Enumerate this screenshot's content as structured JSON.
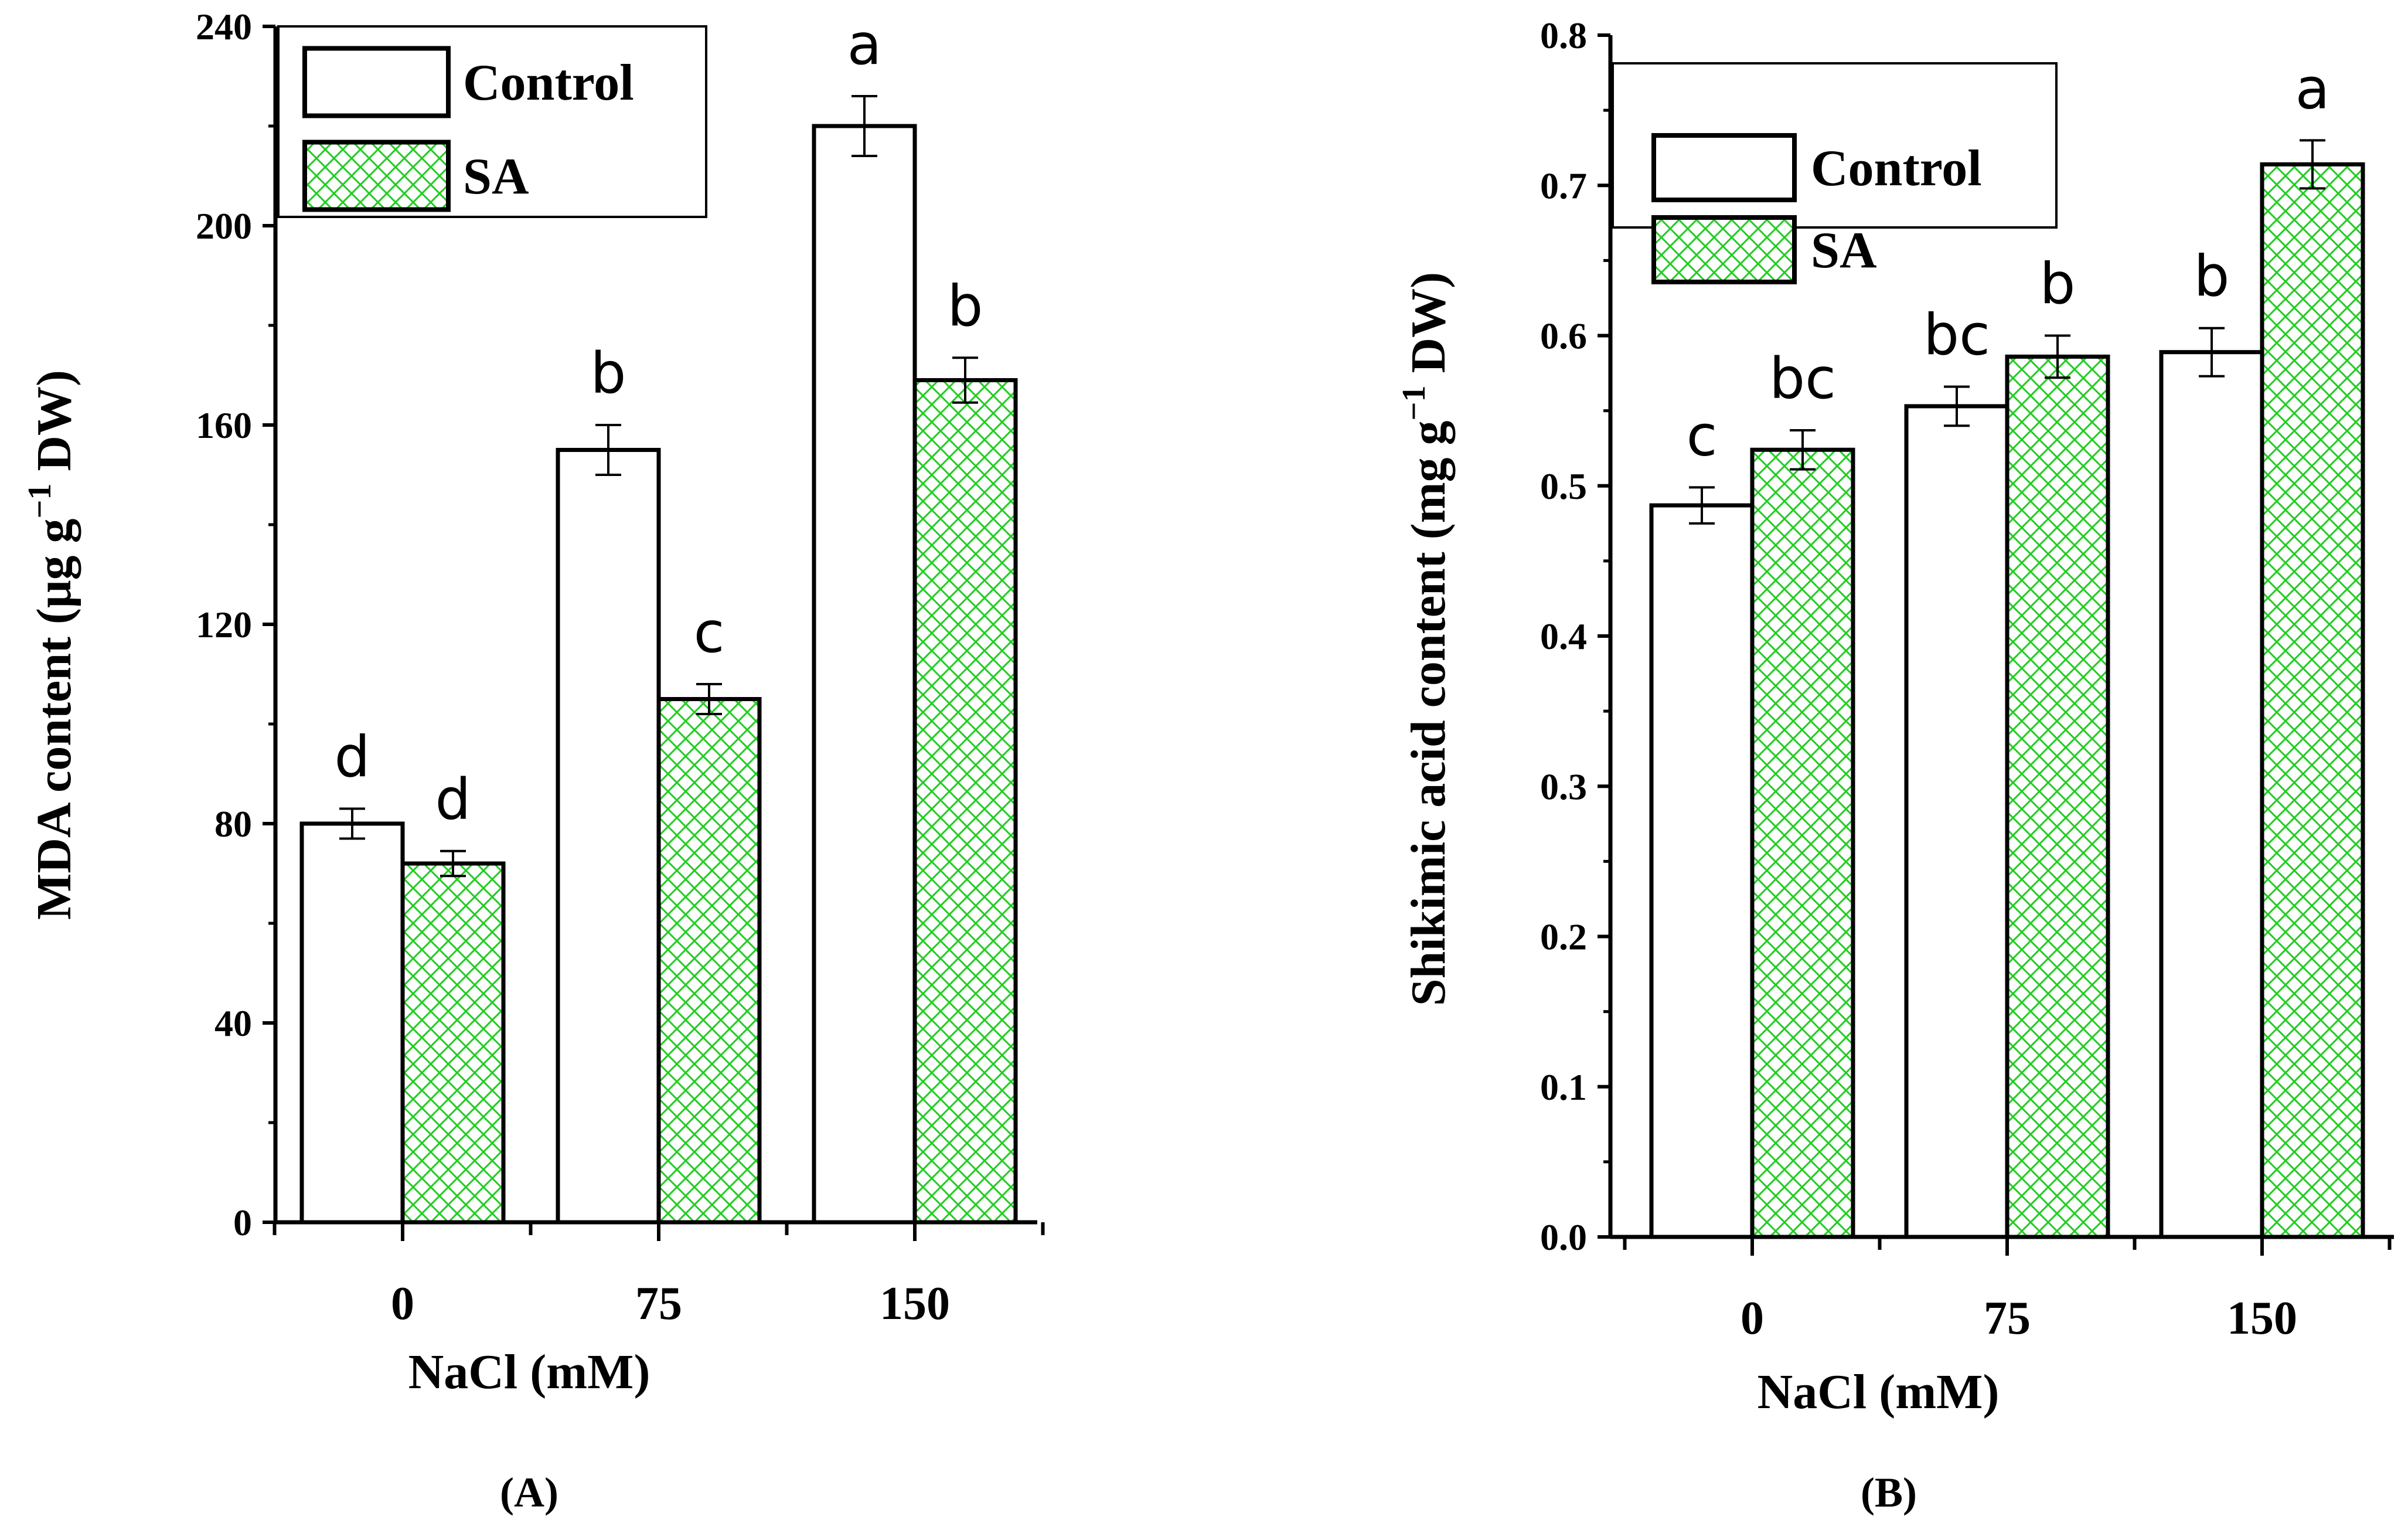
{
  "chart_data": [
    {
      "type": "bar",
      "panel_label": "(A)",
      "categories": [
        "0",
        "75",
        "150"
      ],
      "series": [
        {
          "name": "Control",
          "values": [
            80,
            155,
            220
          ],
          "errors": [
            3,
            5,
            6
          ],
          "sig": [
            "d",
            "b",
            "a"
          ]
        },
        {
          "name": "SA",
          "values": [
            72,
            105,
            169
          ],
          "errors": [
            2.5,
            3,
            4.5
          ],
          "sig": [
            "d",
            "c",
            "b"
          ]
        }
      ],
      "xlabel": "NaCl (mM)",
      "ylabel": "MDA content (μg g⁻¹ DW)",
      "ylabel_parts": {
        "main": "MDA content (μg g",
        "sup": "−1",
        "tail": " DW)"
      },
      "ylim": [
        0,
        240
      ],
      "yticks": [
        0,
        40,
        80,
        120,
        160,
        200,
        240
      ],
      "ytick_labels": [
        "0",
        "40",
        "80",
        "120",
        "160",
        "200",
        "240"
      ],
      "legend": [
        "Control",
        "SA"
      ],
      "legend_position": "top-left"
    },
    {
      "type": "bar",
      "panel_label": "(B)",
      "categories": [
        "0",
        "75",
        "150"
      ],
      "series": [
        {
          "name": "Control",
          "values": [
            0.487,
            0.553,
            0.589
          ],
          "errors": [
            0.012,
            0.013,
            0.016
          ],
          "sig": [
            "c",
            "bc",
            "b"
          ]
        },
        {
          "name": "SA",
          "values": [
            0.524,
            0.586,
            0.714
          ],
          "errors": [
            0.013,
            0.014,
            0.016
          ],
          "sig": [
            "bc",
            "b",
            "a"
          ]
        }
      ],
      "xlabel": "NaCl (mM)",
      "ylabel": "Shikimic acid content (mg g⁻¹ DW)",
      "ylabel_parts": {
        "main": "Shikimic acid content (mg g",
        "sup": "−1",
        "tail": " DW)"
      },
      "ylim": [
        0,
        0.8
      ],
      "yticks": [
        0,
        0.1,
        0.2,
        0.3,
        0.4,
        0.5,
        0.6,
        0.7,
        0.8
      ],
      "ytick_labels": [
        "0.0",
        "0.1",
        "0.2",
        "0.3",
        "0.4",
        "0.5",
        "0.6",
        "0.7",
        "0.8"
      ],
      "legend": [
        "Control",
        "SA"
      ],
      "legend_position": "top-left"
    }
  ],
  "colors": {
    "control_fill": "#ffffff",
    "sa_pattern": "#22cc22",
    "stroke": "#000000"
  }
}
